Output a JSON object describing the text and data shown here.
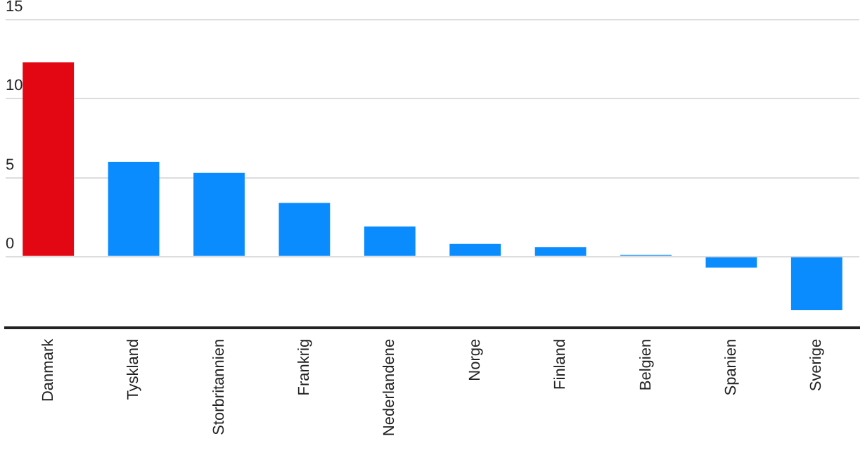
{
  "chart_data": {
    "type": "bar",
    "categories": [
      "Danmark",
      "Tyskland",
      "Storbritannien",
      "Frankrig",
      "Nederlandene",
      "Norge",
      "Finland",
      "Belgien",
      "Spanien",
      "Sverige"
    ],
    "values": [
      12.3,
      6.0,
      5.3,
      3.4,
      1.9,
      0.8,
      0.6,
      0.1,
      -0.7,
      -3.4
    ],
    "colors": [
      "#e30613",
      "#0a8cff",
      "#0a8cff",
      "#0a8cff",
      "#0a8cff",
      "#0a8cff",
      "#0a8cff",
      "#0a8cff",
      "#0a8cff",
      "#0a8cff"
    ],
    "ylim": [
      -4.5,
      15
    ],
    "yticks": [
      0,
      5,
      10,
      15
    ],
    "grid": "y",
    "legend": false
  }
}
